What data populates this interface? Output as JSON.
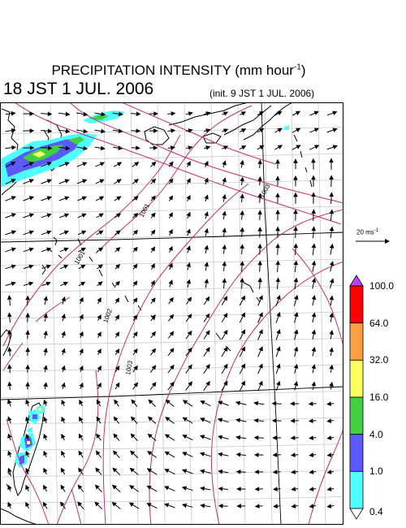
{
  "title": {
    "prefix": "PRECIPITATION INTENSITY (mm hour",
    "exponent": "-1",
    "suffix": ")"
  },
  "valid_time": "18 JST 1 JUL. 2006",
  "init_time": "(init. 9 JST 1 JUL. 2006)",
  "reference_vector": {
    "prefix": "20 ms",
    "exponent": "-1"
  },
  "colorbar": {
    "labels": [
      "100.0",
      "64.0",
      "32.0",
      "16.0",
      "4.0",
      "1.0",
      "0.4"
    ],
    "colors": [
      "#ff0000",
      "#ffa040",
      "#ffff60",
      "#40d040",
      "#5a5aff",
      "#50ffff"
    ],
    "over_color": "#c040ff",
    "under_color": "#ffffff"
  },
  "isobars": {
    "labels": [
      "1001",
      "1001",
      "1002",
      "1003",
      "1003"
    ],
    "color": "#c8306a"
  },
  "precip_colors": {
    "light": "#50ffff",
    "moderate": "#5a5aff",
    "heavy": "#40d040",
    "intense": "#ffff60"
  }
}
